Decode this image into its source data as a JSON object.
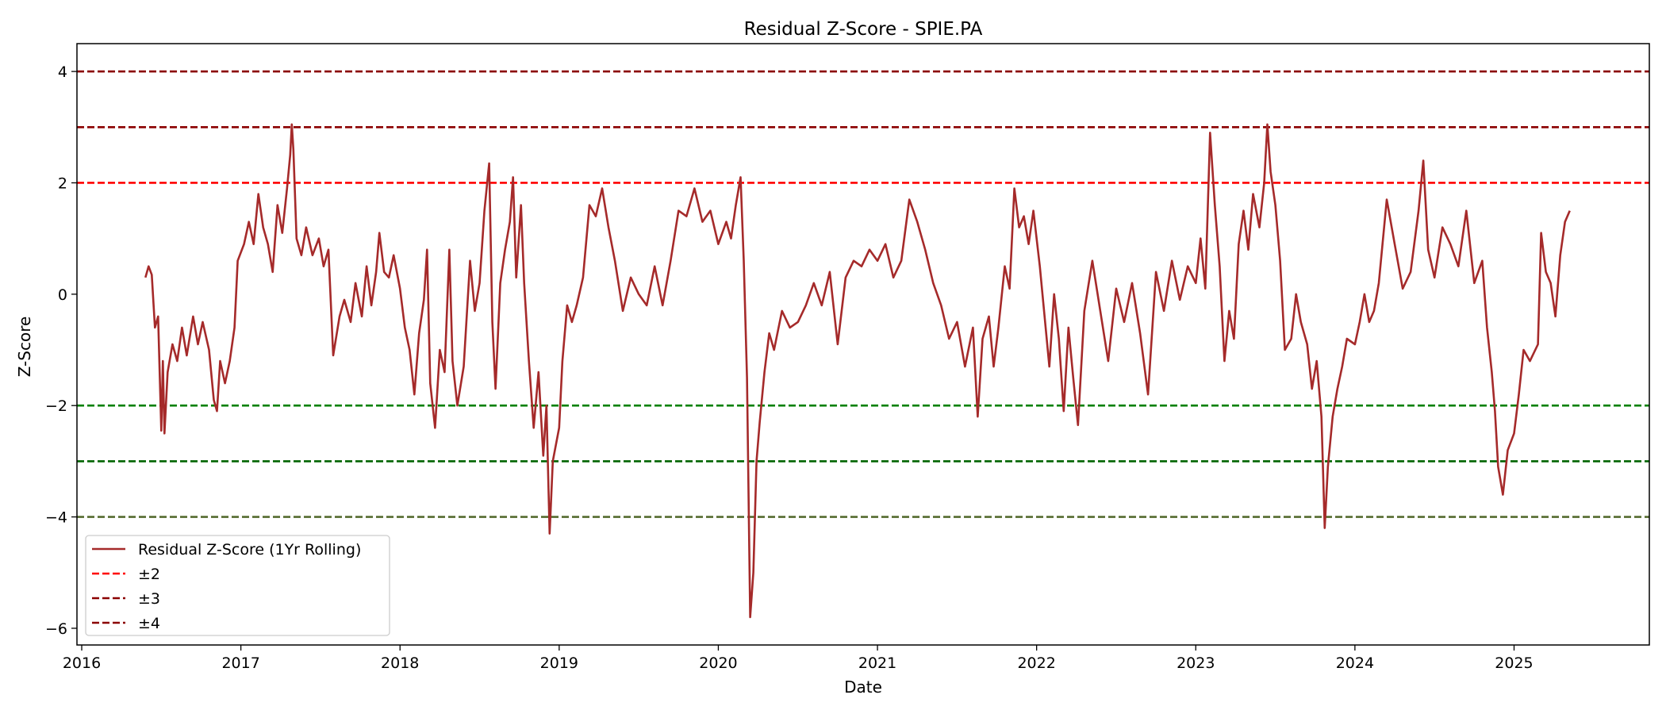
{
  "chart_data": {
    "type": "line",
    "title": "Residual Z-Score - SPIE.PA",
    "xlabel": "Date",
    "ylabel": "Z-Score",
    "xlim": [
      2015.97,
      2025.85
    ],
    "ylim": [
      -6.3,
      4.5
    ],
    "xticks": [
      {
        "value": 2016,
        "label": "2016"
      },
      {
        "value": 2017,
        "label": "2017"
      },
      {
        "value": 2018,
        "label": "2018"
      },
      {
        "value": 2019,
        "label": "2019"
      },
      {
        "value": 2020,
        "label": "2020"
      },
      {
        "value": 2021,
        "label": "2021"
      },
      {
        "value": 2022,
        "label": "2022"
      },
      {
        "value": 2023,
        "label": "2023"
      },
      {
        "value": 2024,
        "label": "2024"
      },
      {
        "value": 2025,
        "label": "2025"
      }
    ],
    "yticks": [
      {
        "value": 4,
        "label": "4"
      },
      {
        "value": 2,
        "label": "2"
      },
      {
        "value": 0,
        "label": "0"
      },
      {
        "value": -2,
        "label": "−2"
      },
      {
        "value": -4,
        "label": "−4"
      },
      {
        "value": -6,
        "label": "−6"
      }
    ],
    "reference_lines": [
      {
        "y": 4,
        "color": "#8b0000",
        "name": "upper-4"
      },
      {
        "y": 3,
        "color": "#8b0000",
        "name": "upper-3"
      },
      {
        "y": 2,
        "color": "#ff0000",
        "name": "upper-2"
      },
      {
        "y": -2,
        "color": "#008000",
        "name": "lower-2"
      },
      {
        "y": -3,
        "color": "#006400",
        "name": "lower-3"
      },
      {
        "y": -4,
        "color": "#556b2f",
        "name": "lower-4"
      }
    ],
    "series": [
      {
        "name": "Residual Z-Score (1Yr Rolling)",
        "color": "#a52a2a",
        "points": [
          [
            2016.4,
            0.3
          ],
          [
            2016.42,
            0.5
          ],
          [
            2016.44,
            0.35
          ],
          [
            2016.46,
            -0.6
          ],
          [
            2016.48,
            -0.4
          ],
          [
            2016.5,
            -2.45
          ],
          [
            2016.51,
            -1.2
          ],
          [
            2016.52,
            -2.5
          ],
          [
            2016.54,
            -1.4
          ],
          [
            2016.57,
            -0.9
          ],
          [
            2016.6,
            -1.2
          ],
          [
            2016.63,
            -0.6
          ],
          [
            2016.66,
            -1.1
          ],
          [
            2016.7,
            -0.4
          ],
          [
            2016.73,
            -0.9
          ],
          [
            2016.76,
            -0.5
          ],
          [
            2016.8,
            -1.0
          ],
          [
            2016.83,
            -1.9
          ],
          [
            2016.85,
            -2.1
          ],
          [
            2016.87,
            -1.2
          ],
          [
            2016.9,
            -1.6
          ],
          [
            2016.93,
            -1.2
          ],
          [
            2016.96,
            -0.6
          ],
          [
            2016.98,
            0.6
          ],
          [
            2017.02,
            0.9
          ],
          [
            2017.05,
            1.3
          ],
          [
            2017.08,
            0.9
          ],
          [
            2017.11,
            1.8
          ],
          [
            2017.14,
            1.2
          ],
          [
            2017.17,
            0.9
          ],
          [
            2017.2,
            0.4
          ],
          [
            2017.23,
            1.6
          ],
          [
            2017.26,
            1.1
          ],
          [
            2017.29,
            1.9
          ],
          [
            2017.31,
            2.5
          ],
          [
            2017.32,
            3.05
          ],
          [
            2017.33,
            2.6
          ],
          [
            2017.35,
            1.0
          ],
          [
            2017.38,
            0.7
          ],
          [
            2017.41,
            1.2
          ],
          [
            2017.45,
            0.7
          ],
          [
            2017.49,
            1.0
          ],
          [
            2017.52,
            0.5
          ],
          [
            2017.55,
            0.8
          ],
          [
            2017.58,
            -1.1
          ],
          [
            2017.62,
            -0.4
          ],
          [
            2017.65,
            -0.1
          ],
          [
            2017.69,
            -0.5
          ],
          [
            2017.72,
            0.2
          ],
          [
            2017.76,
            -0.4
          ],
          [
            2017.79,
            0.5
          ],
          [
            2017.82,
            -0.2
          ],
          [
            2017.85,
            0.4
          ],
          [
            2017.87,
            1.1
          ],
          [
            2017.9,
            0.4
          ],
          [
            2017.93,
            0.3
          ],
          [
            2017.96,
            0.7
          ],
          [
            2018.0,
            0.1
          ],
          [
            2018.03,
            -0.6
          ],
          [
            2018.06,
            -1.0
          ],
          [
            2018.09,
            -1.8
          ],
          [
            2018.12,
            -0.7
          ],
          [
            2018.15,
            -0.1
          ],
          [
            2018.17,
            0.8
          ],
          [
            2018.19,
            -1.6
          ],
          [
            2018.22,
            -2.4
          ],
          [
            2018.25,
            -1.0
          ],
          [
            2018.28,
            -1.4
          ],
          [
            2018.31,
            0.8
          ],
          [
            2018.33,
            -1.2
          ],
          [
            2018.36,
            -2.0
          ],
          [
            2018.4,
            -1.3
          ],
          [
            2018.44,
            0.6
          ],
          [
            2018.47,
            -0.3
          ],
          [
            2018.5,
            0.2
          ],
          [
            2018.53,
            1.5
          ],
          [
            2018.56,
            2.35
          ],
          [
            2018.58,
            -0.5
          ],
          [
            2018.6,
            -1.7
          ],
          [
            2018.63,
            0.2
          ],
          [
            2018.66,
            0.8
          ],
          [
            2018.69,
            1.3
          ],
          [
            2018.71,
            2.1
          ],
          [
            2018.73,
            0.3
          ],
          [
            2018.76,
            1.6
          ],
          [
            2018.78,
            0.2
          ],
          [
            2018.81,
            -1.2
          ],
          [
            2018.84,
            -2.4
          ],
          [
            2018.87,
            -1.4
          ],
          [
            2018.9,
            -2.9
          ],
          [
            2018.92,
            -2.0
          ],
          [
            2018.94,
            -4.3
          ],
          [
            2018.96,
            -3.0
          ],
          [
            2018.98,
            -2.7
          ],
          [
            2019.0,
            -2.4
          ],
          [
            2019.02,
            -1.2
          ],
          [
            2019.05,
            -0.2
          ],
          [
            2019.08,
            -0.5
          ],
          [
            2019.11,
            -0.2
          ],
          [
            2019.15,
            0.3
          ],
          [
            2019.19,
            1.6
          ],
          [
            2019.23,
            1.4
          ],
          [
            2019.27,
            1.9
          ],
          [
            2019.31,
            1.2
          ],
          [
            2019.35,
            0.6
          ],
          [
            2019.4,
            -0.3
          ],
          [
            2019.45,
            0.3
          ],
          [
            2019.5,
            0.0
          ],
          [
            2019.55,
            -0.2
          ],
          [
            2019.6,
            0.5
          ],
          [
            2019.65,
            -0.2
          ],
          [
            2019.7,
            0.6
          ],
          [
            2019.75,
            1.5
          ],
          [
            2019.8,
            1.4
          ],
          [
            2019.85,
            1.9
          ],
          [
            2019.9,
            1.3
          ],
          [
            2019.95,
            1.5
          ],
          [
            2020.0,
            0.9
          ],
          [
            2020.05,
            1.3
          ],
          [
            2020.08,
            1.0
          ],
          [
            2020.11,
            1.6
          ],
          [
            2020.14,
            2.1
          ],
          [
            2020.16,
            0.6
          ],
          [
            2020.18,
            -1.5
          ],
          [
            2020.2,
            -5.8
          ],
          [
            2020.22,
            -5.0
          ],
          [
            2020.24,
            -3.0
          ],
          [
            2020.26,
            -2.3
          ],
          [
            2020.29,
            -1.4
          ],
          [
            2020.32,
            -0.7
          ],
          [
            2020.35,
            -1.0
          ],
          [
            2020.4,
            -0.3
          ],
          [
            2020.45,
            -0.6
          ],
          [
            2020.5,
            -0.5
          ],
          [
            2020.55,
            -0.2
          ],
          [
            2020.6,
            0.2
          ],
          [
            2020.65,
            -0.2
          ],
          [
            2020.7,
            0.4
          ],
          [
            2020.75,
            -0.9
          ],
          [
            2020.8,
            0.3
          ],
          [
            2020.85,
            0.6
          ],
          [
            2020.9,
            0.5
          ],
          [
            2020.95,
            0.8
          ],
          [
            2021.0,
            0.6
          ],
          [
            2021.05,
            0.9
          ],
          [
            2021.1,
            0.3
          ],
          [
            2021.15,
            0.6
          ],
          [
            2021.2,
            1.7
          ],
          [
            2021.25,
            1.3
          ],
          [
            2021.3,
            0.8
          ],
          [
            2021.35,
            0.2
          ],
          [
            2021.4,
            -0.2
          ],
          [
            2021.45,
            -0.8
          ],
          [
            2021.5,
            -0.5
          ],
          [
            2021.55,
            -1.3
          ],
          [
            2021.6,
            -0.6
          ],
          [
            2021.63,
            -2.2
          ],
          [
            2021.66,
            -0.8
          ],
          [
            2021.7,
            -0.4
          ],
          [
            2021.73,
            -1.3
          ],
          [
            2021.76,
            -0.6
          ],
          [
            2021.8,
            0.5
          ],
          [
            2021.83,
            0.1
          ],
          [
            2021.86,
            1.9
          ],
          [
            2021.89,
            1.2
          ],
          [
            2021.92,
            1.4
          ],
          [
            2021.95,
            0.9
          ],
          [
            2021.98,
            1.5
          ],
          [
            2022.02,
            0.5
          ],
          [
            2022.05,
            -0.4
          ],
          [
            2022.08,
            -1.3
          ],
          [
            2022.11,
            0.0
          ],
          [
            2022.14,
            -0.8
          ],
          [
            2022.17,
            -2.1
          ],
          [
            2022.2,
            -0.6
          ],
          [
            2022.23,
            -1.5
          ],
          [
            2022.26,
            -2.35
          ],
          [
            2022.3,
            -0.3
          ],
          [
            2022.35,
            0.6
          ],
          [
            2022.4,
            -0.3
          ],
          [
            2022.45,
            -1.2
          ],
          [
            2022.5,
            0.1
          ],
          [
            2022.55,
            -0.5
          ],
          [
            2022.6,
            0.2
          ],
          [
            2022.65,
            -0.7
          ],
          [
            2022.7,
            -1.8
          ],
          [
            2022.75,
            0.4
          ],
          [
            2022.8,
            -0.3
          ],
          [
            2022.85,
            0.6
          ],
          [
            2022.9,
            -0.1
          ],
          [
            2022.95,
            0.5
          ],
          [
            2023.0,
            0.2
          ],
          [
            2023.03,
            1.0
          ],
          [
            2023.06,
            0.1
          ],
          [
            2023.09,
            2.9
          ],
          [
            2023.12,
            1.6
          ],
          [
            2023.15,
            0.5
          ],
          [
            2023.18,
            -1.2
          ],
          [
            2023.21,
            -0.3
          ],
          [
            2023.24,
            -0.8
          ],
          [
            2023.27,
            0.9
          ],
          [
            2023.3,
            1.5
          ],
          [
            2023.33,
            0.8
          ],
          [
            2023.36,
            1.8
          ],
          [
            2023.4,
            1.2
          ],
          [
            2023.43,
            2.0
          ],
          [
            2023.45,
            3.05
          ],
          [
            2023.47,
            2.2
          ],
          [
            2023.5,
            1.6
          ],
          [
            2023.53,
            0.6
          ],
          [
            2023.56,
            -1.0
          ],
          [
            2023.6,
            -0.8
          ],
          [
            2023.63,
            0.0
          ],
          [
            2023.66,
            -0.5
          ],
          [
            2023.7,
            -0.9
          ],
          [
            2023.73,
            -1.7
          ],
          [
            2023.76,
            -1.2
          ],
          [
            2023.79,
            -2.2
          ],
          [
            2023.81,
            -4.2
          ],
          [
            2023.83,
            -3.1
          ],
          [
            2023.86,
            -2.2
          ],
          [
            2023.89,
            -1.7
          ],
          [
            2023.92,
            -1.3
          ],
          [
            2023.95,
            -0.8
          ],
          [
            2024.0,
            -0.9
          ],
          [
            2024.03,
            -0.5
          ],
          [
            2024.06,
            0.0
          ],
          [
            2024.09,
            -0.5
          ],
          [
            2024.12,
            -0.3
          ],
          [
            2024.15,
            0.2
          ],
          [
            2024.2,
            1.7
          ],
          [
            2024.25,
            0.9
          ],
          [
            2024.3,
            0.1
          ],
          [
            2024.35,
            0.4
          ],
          [
            2024.4,
            1.5
          ],
          [
            2024.43,
            2.4
          ],
          [
            2024.46,
            0.8
          ],
          [
            2024.5,
            0.3
          ],
          [
            2024.55,
            1.2
          ],
          [
            2024.6,
            0.9
          ],
          [
            2024.65,
            0.5
          ],
          [
            2024.7,
            1.5
          ],
          [
            2024.75,
            0.2
          ],
          [
            2024.8,
            0.6
          ],
          [
            2024.83,
            -0.6
          ],
          [
            2024.86,
            -1.4
          ],
          [
            2024.88,
            -2.1
          ],
          [
            2024.9,
            -3.1
          ],
          [
            2024.93,
            -3.6
          ],
          [
            2024.96,
            -2.8
          ],
          [
            2025.0,
            -2.5
          ],
          [
            2025.03,
            -1.8
          ],
          [
            2025.06,
            -1.0
          ],
          [
            2025.1,
            -1.2
          ],
          [
            2025.15,
            -0.9
          ],
          [
            2025.17,
            1.1
          ],
          [
            2025.2,
            0.4
          ],
          [
            2025.23,
            0.2
          ],
          [
            2025.26,
            -0.4
          ],
          [
            2025.29,
            0.7
          ],
          [
            2025.32,
            1.3
          ],
          [
            2025.35,
            1.5
          ]
        ]
      }
    ],
    "legend": {
      "position": "bottom-left",
      "entries": [
        {
          "label": "Residual Z-Score (1Yr Rolling)",
          "color": "#a52a2a",
          "style": "solid"
        },
        {
          "label": "±2",
          "color": "#ff0000",
          "style": "dashed"
        },
        {
          "label": "±3",
          "color": "#8b0000",
          "style": "dashed"
        },
        {
          "label": "±4",
          "color": "#8b0000",
          "style": "dashed"
        }
      ]
    }
  }
}
